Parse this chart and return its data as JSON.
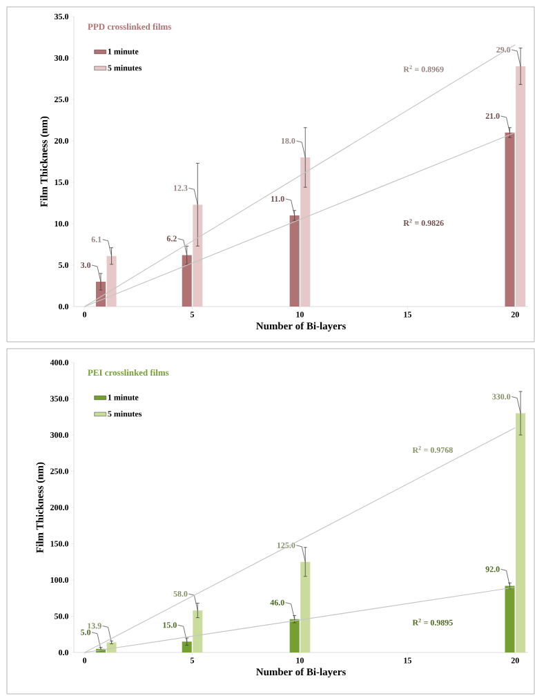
{
  "chart_data": [
    {
      "type": "bar",
      "title": "PPD crosslinked films",
      "xlabel": "Number of Bi-layers",
      "ylabel": "Film Thickness (nm)",
      "xlim": [
        -0.5,
        20.6
      ],
      "xticks": [
        0,
        5,
        10,
        15,
        20
      ],
      "ylim": [
        0,
        35
      ],
      "yticks": [
        {
          "value": 0,
          "label": "0.0"
        },
        {
          "value": 5,
          "label": "5.0"
        },
        {
          "value": 10,
          "label": "10.0"
        },
        {
          "value": 15,
          "label": "15.0"
        },
        {
          "value": 20,
          "label": "20.0"
        },
        {
          "value": 25,
          "label": "25.0"
        },
        {
          "value": 30,
          "label": "30.0"
        },
        {
          "value": 35,
          "label": "35.0"
        }
      ],
      "legend": "top left",
      "grid": false,
      "series": [
        {
          "name": "1 minute",
          "color": "#b07272",
          "x": [
            1,
            5,
            10,
            20
          ],
          "values": [
            3.0,
            6.2,
            11.0,
            21.0
          ],
          "errors": [
            1.0,
            1.1,
            0.6,
            0.6
          ],
          "value_labels": [
            "3.0",
            "6.2",
            "11.0",
            "21.0"
          ]
        },
        {
          "name": "5 minutes",
          "color": "#e6c8c8",
          "x": [
            1,
            5,
            10,
            20
          ],
          "values": [
            6.1,
            12.3,
            18.0,
            29.0
          ],
          "errors": [
            1.0,
            5.0,
            3.6,
            2.2
          ],
          "value_labels": [
            "6.1",
            "12.3",
            "18.0",
            "29.0"
          ]
        },
        {
          "type": "line",
          "color": "#c4c4c4",
          "x": [
            0,
            20
          ],
          "values": [
            0,
            21.0
          ]
        },
        {
          "type": "line",
          "color": "#c4c4c4",
          "x": [
            0,
            20
          ],
          "values": [
            0,
            31.6
          ]
        }
      ],
      "annotations": [
        "R$^{2}$ = 0.9826",
        "R$^{2}$ = 0.8969"
      ]
    },
    {
      "type": "bar",
      "title": "PEI crosslinked films",
      "xlabel": "Number of Bi-layers",
      "ylabel": "Film Thickness (nm)",
      "xlim": [
        -0.5,
        20.6
      ],
      "xticks": [
        0,
        5,
        10,
        15,
        20
      ],
      "ylim": [
        0,
        400
      ],
      "yticks": [
        {
          "value": 0,
          "label": "0.0"
        },
        {
          "value": 50,
          "label": "50.0"
        },
        {
          "value": 100,
          "label": "100.0"
        },
        {
          "value": 150,
          "label": "150.0"
        },
        {
          "value": 200,
          "label": "200.0"
        },
        {
          "value": 250,
          "label": "250.0"
        },
        {
          "value": 300,
          "label": "300.0"
        },
        {
          "value": 350,
          "label": "350.0"
        },
        {
          "value": 400,
          "label": "400.0"
        }
      ],
      "legend": "top left",
      "grid": false,
      "series": [
        {
          "name": "1 minute",
          "color": "#74a032",
          "x": [
            1,
            5,
            10,
            20
          ],
          "values": [
            5.0,
            15.0,
            46.0,
            92.0
          ],
          "errors": [
            2,
            5,
            5,
            4
          ],
          "value_labels": [
            "5.0",
            "15.0",
            "46.0",
            "92.0"
          ]
        },
        {
          "name": "5 minutes",
          "color": "#cadc9c",
          "x": [
            1,
            5,
            10,
            20
          ],
          "values": [
            13.9,
            58.0,
            125.0,
            330.0
          ],
          "errors": [
            2,
            10,
            20,
            30
          ],
          "value_labels": [
            "13.9",
            "58.0",
            "125.0",
            "330.0"
          ]
        },
        {
          "type": "line",
          "color": "#c4c4c4",
          "x": [
            0,
            20
          ],
          "values": [
            0,
            90
          ]
        },
        {
          "type": "line",
          "color": "#c4c4c4",
          "x": [
            0,
            20
          ],
          "values": [
            0,
            310
          ]
        }
      ],
      "annotations": [
        "R$^{2}$ = 0.9895",
        "R$^{2}$ = 0.9768"
      ]
    }
  ]
}
